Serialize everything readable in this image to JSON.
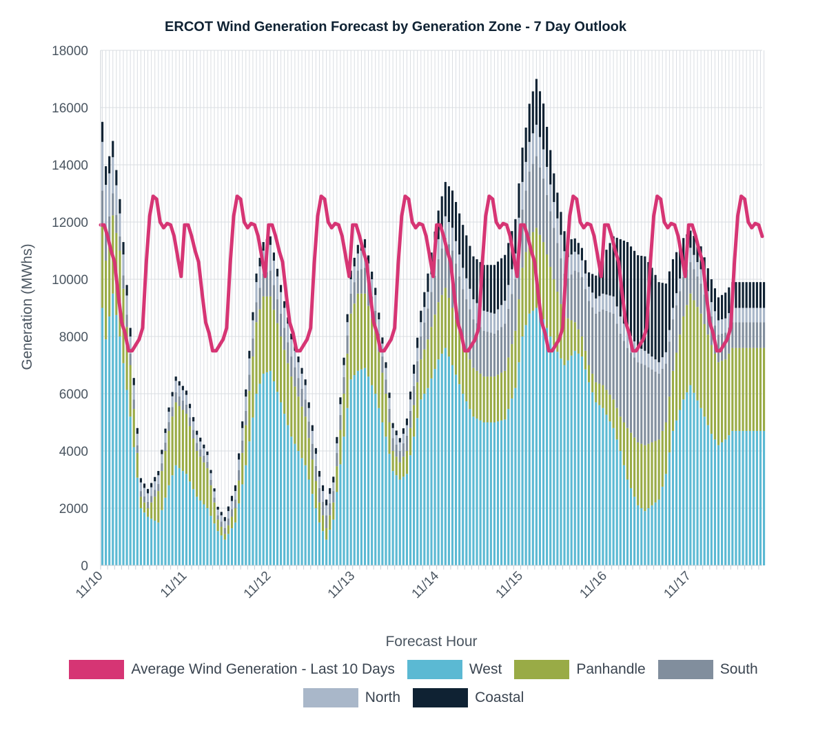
{
  "chart_data": {
    "type": "bar",
    "stacked": true,
    "title": "ERCOT Wind Generation Forecast by Generation Zone - 7 Day Outlook",
    "xlabel": "Forecast Hour",
    "ylabel": "Generation (MWhs)",
    "ylim": [
      0,
      18000
    ],
    "yticks": [
      0,
      2000,
      4000,
      6000,
      8000,
      10000,
      12000,
      14000,
      16000,
      18000
    ],
    "grid": true,
    "legend_position": "bottom",
    "x_labels": [
      "11/10",
      "11/11",
      "11/12",
      "11/13",
      "11/14",
      "11/15",
      "11/16",
      "11/17"
    ],
    "hours_per_day": 24,
    "hours_after_last_label": 21,
    "colors": {
      "avg": "#d63574",
      "West": "#5bb9d3",
      "Panhandle": "#99ab46",
      "South": "#818e9d",
      "North": "#a9b7c9",
      "Coastal": "#0f2233"
    },
    "series": [
      {
        "name": "West",
        "anchors": [
          [
            0,
            9000
          ],
          [
            1,
            7900
          ],
          [
            3,
            9500
          ],
          [
            5,
            8000
          ],
          [
            8,
            5200
          ],
          [
            11,
            2000
          ],
          [
            13,
            1700
          ],
          [
            16,
            1500
          ],
          [
            19,
            2800
          ],
          [
            21,
            3500
          ],
          [
            24,
            3200
          ],
          [
            27,
            2400
          ],
          [
            30,
            2000
          ],
          [
            33,
            1200
          ],
          [
            35,
            900
          ],
          [
            38,
            1500
          ],
          [
            41,
            3500
          ],
          [
            44,
            6000
          ],
          [
            46,
            6700
          ],
          [
            48,
            6800
          ],
          [
            51,
            5700
          ],
          [
            54,
            4500
          ],
          [
            58,
            3500
          ],
          [
            62,
            1500
          ],
          [
            64,
            900
          ],
          [
            66,
            1600
          ],
          [
            69,
            4500
          ],
          [
            71,
            6500
          ],
          [
            73,
            6800
          ],
          [
            75,
            6900
          ],
          [
            78,
            6000
          ],
          [
            81,
            4500
          ],
          [
            83,
            3300
          ],
          [
            85,
            3000
          ],
          [
            87,
            3200
          ],
          [
            89,
            4500
          ],
          [
            91,
            5800
          ],
          [
            93,
            6200
          ],
          [
            96,
            7200
          ],
          [
            98,
            7600
          ],
          [
            100,
            7000
          ],
          [
            103,
            6000
          ],
          [
            106,
            5200
          ],
          [
            109,
            5000
          ],
          [
            112,
            5000
          ],
          [
            115,
            5100
          ],
          [
            118,
            6200
          ],
          [
            120,
            8000
          ],
          [
            122,
            8800
          ],
          [
            124,
            9000
          ],
          [
            126,
            8600
          ],
          [
            129,
            7700
          ],
          [
            132,
            7000
          ],
          [
            135,
            7500
          ],
          [
            137,
            7300
          ],
          [
            139,
            6400
          ],
          [
            141,
            5700
          ],
          [
            143,
            5500
          ],
          [
            146,
            4800
          ],
          [
            148,
            4000
          ],
          [
            150,
            3000
          ],
          [
            153,
            2100
          ],
          [
            155,
            1900
          ],
          [
            157,
            2100
          ],
          [
            159,
            2300
          ],
          [
            161,
            3200
          ],
          [
            163,
            4700
          ],
          [
            166,
            5800
          ],
          [
            168,
            6300
          ],
          [
            171,
            5500
          ],
          [
            174,
            4600
          ],
          [
            176,
            4200
          ],
          [
            178,
            4400
          ],
          [
            180,
            4700
          ]
        ]
      },
      {
        "name": "Panhandle",
        "anchors": [
          [
            0,
            2900
          ],
          [
            2,
            2600
          ],
          [
            5,
            3000
          ],
          [
            8,
            1800
          ],
          [
            11,
            400
          ],
          [
            13,
            300
          ],
          [
            16,
            1100
          ],
          [
            19,
            1900
          ],
          [
            21,
            2200
          ],
          [
            24,
            2100
          ],
          [
            27,
            1600
          ],
          [
            30,
            1400
          ],
          [
            33,
            400
          ],
          [
            35,
            200
          ],
          [
            38,
            500
          ],
          [
            41,
            1400
          ],
          [
            44,
            2500
          ],
          [
            46,
            2700
          ],
          [
            48,
            2600
          ],
          [
            51,
            2300
          ],
          [
            54,
            2100
          ],
          [
            58,
            1700
          ],
          [
            62,
            700
          ],
          [
            64,
            400
          ],
          [
            66,
            600
          ],
          [
            69,
            1500
          ],
          [
            71,
            2300
          ],
          [
            73,
            2700
          ],
          [
            75,
            2600
          ],
          [
            78,
            2200
          ],
          [
            81,
            1500
          ],
          [
            83,
            700
          ],
          [
            85,
            600
          ],
          [
            87,
            800
          ],
          [
            89,
            1100
          ],
          [
            91,
            1400
          ],
          [
            93,
            1700
          ],
          [
            96,
            2000
          ],
          [
            98,
            2100
          ],
          [
            100,
            2000
          ],
          [
            103,
            1800
          ],
          [
            106,
            1700
          ],
          [
            109,
            1600
          ],
          [
            112,
            1600
          ],
          [
            115,
            1700
          ],
          [
            118,
            2000
          ],
          [
            120,
            2400
          ],
          [
            122,
            2700
          ],
          [
            124,
            2800
          ],
          [
            126,
            2700
          ],
          [
            129,
            2300
          ],
          [
            132,
            1700
          ],
          [
            135,
            1000
          ],
          [
            137,
            700
          ],
          [
            139,
            600
          ],
          [
            141,
            700
          ],
          [
            143,
            800
          ],
          [
            146,
            1000
          ],
          [
            148,
            1200
          ],
          [
            150,
            1800
          ],
          [
            153,
            2200
          ],
          [
            155,
            2300
          ],
          [
            157,
            2200
          ],
          [
            159,
            2100
          ],
          [
            161,
            1800
          ],
          [
            163,
            2100
          ],
          [
            166,
            2900
          ],
          [
            168,
            3200
          ],
          [
            171,
            3300
          ],
          [
            174,
            3100
          ],
          [
            176,
            2900
          ],
          [
            178,
            2800
          ],
          [
            180,
            2900
          ]
        ]
      },
      {
        "name": "South",
        "anchors": [
          [
            0,
            1200
          ],
          [
            2,
            900
          ],
          [
            5,
            500
          ],
          [
            8,
            400
          ],
          [
            11,
            200
          ],
          [
            16,
            250
          ],
          [
            21,
            350
          ],
          [
            26,
            300
          ],
          [
            33,
            150
          ],
          [
            38,
            300
          ],
          [
            44,
            700
          ],
          [
            48,
            900
          ],
          [
            54,
            700
          ],
          [
            62,
            500
          ],
          [
            66,
            400
          ],
          [
            71,
            700
          ],
          [
            75,
            900
          ],
          [
            81,
            500
          ],
          [
            85,
            400
          ],
          [
            91,
            800
          ],
          [
            96,
            1500
          ],
          [
            100,
            2000
          ],
          [
            106,
            1700
          ],
          [
            112,
            1500
          ],
          [
            118,
            1800
          ],
          [
            124,
            2500
          ],
          [
            129,
            1800
          ],
          [
            133,
            1400
          ],
          [
            136,
            2000
          ],
          [
            141,
            2400
          ],
          [
            146,
            3000
          ],
          [
            150,
            2800
          ],
          [
            155,
            2800
          ],
          [
            159,
            2300
          ],
          [
            163,
            1800
          ],
          [
            168,
            1100
          ],
          [
            174,
            1000
          ],
          [
            180,
            900
          ]
        ]
      },
      {
        "name": "North",
        "anchors": [
          [
            0,
            1700
          ],
          [
            2,
            1500
          ],
          [
            5,
            800
          ],
          [
            8,
            600
          ],
          [
            11,
            300
          ],
          [
            16,
            300
          ],
          [
            21,
            400
          ],
          [
            26,
            300
          ],
          [
            33,
            200
          ],
          [
            38,
            300
          ],
          [
            44,
            700
          ],
          [
            48,
            900
          ],
          [
            54,
            600
          ],
          [
            62,
            400
          ],
          [
            66,
            300
          ],
          [
            71,
            500
          ],
          [
            75,
            700
          ],
          [
            81,
            400
          ],
          [
            85,
            300
          ],
          [
            91,
            500
          ],
          [
            96,
            700
          ],
          [
            100,
            800
          ],
          [
            106,
            700
          ],
          [
            112,
            700
          ],
          [
            118,
            900
          ],
          [
            124,
            1100
          ],
          [
            129,
            900
          ],
          [
            134,
            700
          ],
          [
            139,
            500
          ],
          [
            146,
            600
          ],
          [
            150,
            600
          ],
          [
            155,
            500
          ],
          [
            159,
            400
          ],
          [
            163,
            400
          ],
          [
            168,
            500
          ],
          [
            174,
            500
          ],
          [
            180,
            500
          ]
        ]
      },
      {
        "name": "Coastal",
        "anchors": [
          [
            0,
            700
          ],
          [
            2,
            600
          ],
          [
            5,
            500
          ],
          [
            8,
            300
          ],
          [
            11,
            150
          ],
          [
            16,
            150
          ],
          [
            21,
            150
          ],
          [
            26,
            150
          ],
          [
            33,
            100
          ],
          [
            38,
            200
          ],
          [
            44,
            300
          ],
          [
            48,
            300
          ],
          [
            54,
            200
          ],
          [
            62,
            200
          ],
          [
            66,
            200
          ],
          [
            71,
            300
          ],
          [
            75,
            300
          ],
          [
            81,
            200
          ],
          [
            85,
            150
          ],
          [
            91,
            400
          ],
          [
            96,
            1000
          ],
          [
            98,
            1200
          ],
          [
            100,
            1300
          ],
          [
            103,
            1500
          ],
          [
            106,
            1500
          ],
          [
            109,
            1600
          ],
          [
            112,
            1700
          ],
          [
            115,
            1600
          ],
          [
            118,
            1200
          ],
          [
            121,
            1200
          ],
          [
            124,
            1600
          ],
          [
            126,
            1600
          ],
          [
            129,
            1000
          ],
          [
            133,
            600
          ],
          [
            136,
            400
          ],
          [
            139,
            500
          ],
          [
            141,
            800
          ],
          [
            143,
            1300
          ],
          [
            146,
            2100
          ],
          [
            148,
            2700
          ],
          [
            150,
            3100
          ],
          [
            153,
            3200
          ],
          [
            155,
            3300
          ],
          [
            157,
            3100
          ],
          [
            159,
            2800
          ],
          [
            161,
            2400
          ],
          [
            163,
            1700
          ],
          [
            166,
            900
          ],
          [
            168,
            600
          ],
          [
            171,
            800
          ],
          [
            174,
            800
          ],
          [
            176,
            800
          ],
          [
            178,
            900
          ],
          [
            180,
            900
          ]
        ]
      }
    ],
    "average_line": {
      "name": "Average Wind Generation - Last 10 Days",
      "daily_profile": [
        11900,
        11900,
        11500,
        11000,
        10600,
        9500,
        8500,
        8100,
        7500,
        7500,
        7700,
        7900,
        8300,
        10500,
        12200,
        12900,
        12800,
        12000,
        11800,
        11950,
        11900,
        11500,
        10800,
        10100
      ]
    }
  },
  "legend": {
    "row1": [
      "Average Wind Generation - Last 10 Days",
      "West",
      "Panhandle",
      "South"
    ],
    "row2": [
      "North",
      "Coastal"
    ]
  }
}
